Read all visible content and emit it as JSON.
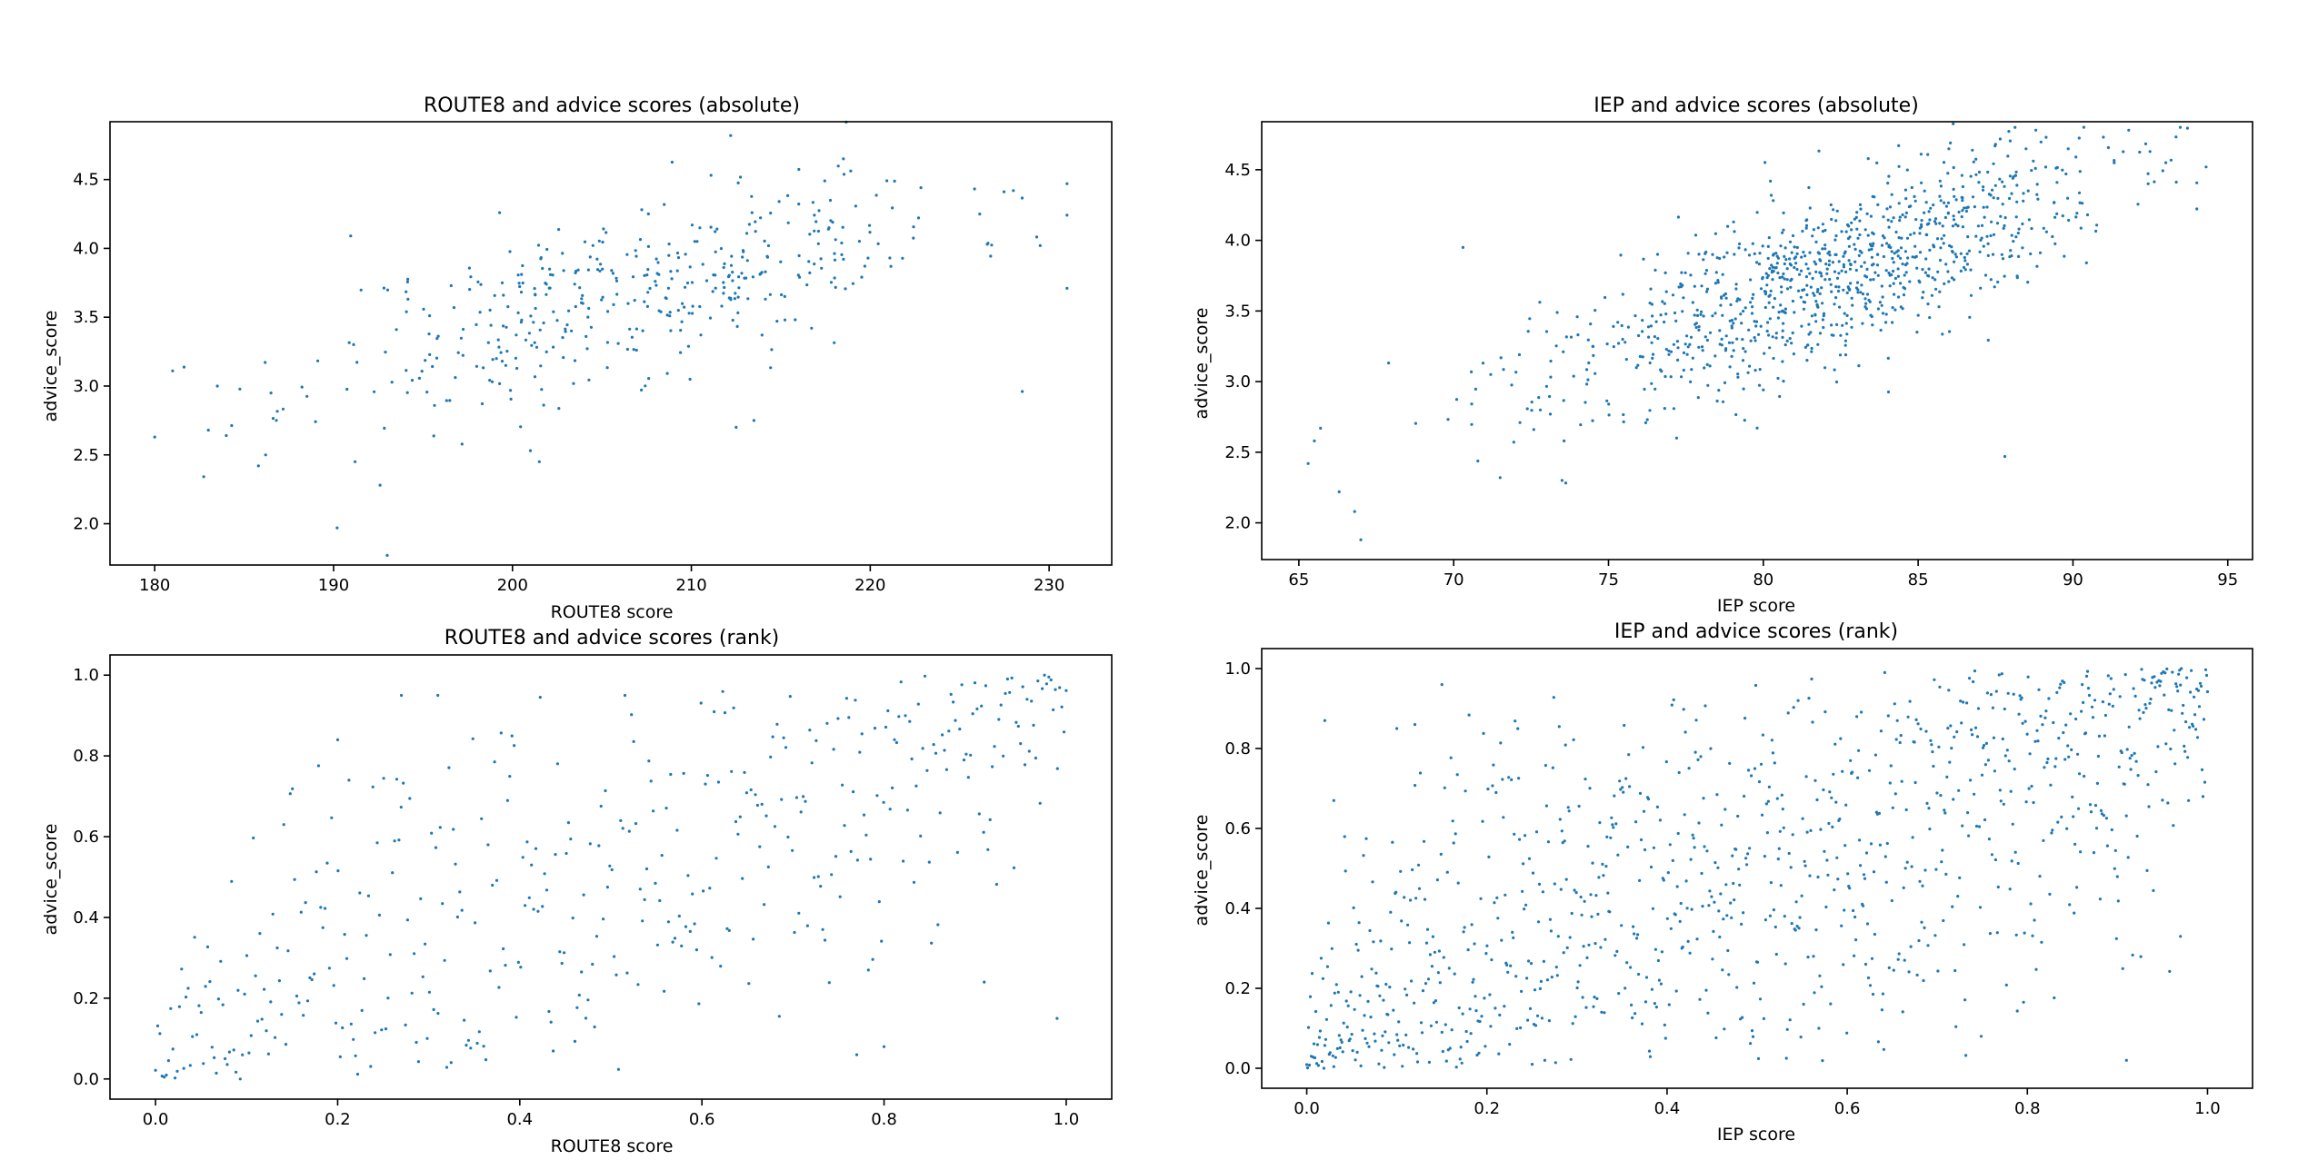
{
  "figure": {
    "point_color": "#1f77b4"
  },
  "chart_data": [
    {
      "type": "scatter",
      "title": "ROUTE8 and advice scores (absolute)",
      "xlabel": "ROUTE8 score",
      "ylabel": "advice_score",
      "xlim": [
        177.5,
        233.5
      ],
      "ylim": [
        1.7,
        4.92
      ],
      "xticks": [
        180,
        190,
        200,
        210,
        220,
        230
      ],
      "yticks": [
        2.0,
        2.5,
        3.0,
        3.5,
        4.0,
        4.5
      ],
      "tick_decimals": 1,
      "x_tick_decimals": 0,
      "trend": {
        "slope": 0.033,
        "intercept_x": 180,
        "intercept_y": 2.8,
        "noise": 0.32,
        "x_mean": 207,
        "x_sd": 9,
        "x_min": 180,
        "x_max": 231,
        "n": 420,
        "seed": 11
      },
      "points": [
        [
          180.0,
          2.63
        ],
        [
          181.0,
          3.11
        ],
        [
          183.0,
          2.68
        ],
        [
          183.5,
          3.0
        ],
        [
          184.0,
          2.64
        ],
        [
          185.8,
          2.42
        ],
        [
          186.2,
          2.5
        ],
        [
          186.5,
          2.95
        ],
        [
          190.2,
          1.97
        ],
        [
          193.0,
          1.77
        ],
        [
          192.6,
          2.28
        ],
        [
          191.2,
          2.45
        ],
        [
          231.0,
          4.47
        ],
        [
          231.0,
          3.71
        ],
        [
          228.5,
          2.96
        ],
        [
          212.2,
          4.82
        ],
        [
          218.5,
          4.65
        ],
        [
          228.0,
          4.42
        ],
        [
          213.5,
          2.75
        ],
        [
          212.5,
          2.7
        ],
        [
          201.5,
          2.45
        ],
        [
          229.5,
          4.02
        ]
      ]
    },
    {
      "type": "scatter",
      "title": "IEP and advice scores (absolute)",
      "xlabel": "IEP score",
      "ylabel": "advice_score",
      "xlim": [
        63.8,
        95.8
      ],
      "ylim": [
        1.74,
        4.84
      ],
      "xticks": [
        65,
        70,
        75,
        80,
        85,
        90,
        95
      ],
      "yticks": [
        2.0,
        2.5,
        3.0,
        3.5,
        4.0,
        4.5
      ],
      "tick_decimals": 1,
      "x_tick_decimals": 0,
      "trend": {
        "slope": 0.075,
        "intercept_x": 65,
        "intercept_y": 2.45,
        "noise": 0.3,
        "x_mean": 82,
        "x_sd": 4.5,
        "x_min": 66,
        "x_max": 94,
        "n": 1000,
        "seed": 23
      },
      "points": [
        [
          65.3,
          2.42
        ],
        [
          65.5,
          2.58
        ],
        [
          65.7,
          2.67
        ],
        [
          66.3,
          2.22
        ],
        [
          66.8,
          2.08
        ],
        [
          67.0,
          1.88
        ],
        [
          70.3,
          3.95
        ],
        [
          94.3,
          4.52
        ],
        [
          93.0,
          4.55
        ],
        [
          91.8,
          4.78
        ],
        [
          88.8,
          4.78
        ],
        [
          87.5,
          4.68
        ],
        [
          87.8,
          2.47
        ],
        [
          71.5,
          2.32
        ],
        [
          73.5,
          2.3
        ]
      ]
    },
    {
      "type": "scatter",
      "title": "ROUTE8 and advice scores (rank)",
      "xlabel": "ROUTE8 score",
      "ylabel": "advice_score",
      "xlim": [
        -0.05,
        1.05
      ],
      "ylim": [
        -0.05,
        1.05
      ],
      "xticks": [
        0.0,
        0.2,
        0.4,
        0.6,
        0.8,
        1.0
      ],
      "yticks": [
        0.0,
        0.2,
        0.4,
        0.6,
        0.8,
        1.0
      ],
      "tick_decimals": 1,
      "x_tick_decimals": 1,
      "trend": {
        "rank": true,
        "corr": 0.72,
        "n": 420,
        "seed": 37
      },
      "points": [
        [
          0.27,
          0.95
        ],
        [
          0.31,
          0.95
        ],
        [
          0.2,
          0.84
        ],
        [
          0.99,
          0.15
        ],
        [
          0.91,
          0.24
        ],
        [
          0.77,
          0.06
        ],
        [
          0.8,
          0.08
        ]
      ]
    },
    {
      "type": "scatter",
      "title": "IEP and advice scores (rank)",
      "xlabel": "IEP score",
      "ylabel": "advice_score",
      "xlim": [
        -0.05,
        1.05
      ],
      "ylim": [
        -0.05,
        1.05
      ],
      "xticks": [
        0.0,
        0.2,
        0.4,
        0.6,
        0.8,
        1.0
      ],
      "yticks": [
        0.0,
        0.2,
        0.4,
        0.6,
        0.8,
        1.0
      ],
      "tick_decimals": 1,
      "x_tick_decimals": 1,
      "trend": {
        "rank": true,
        "corr": 0.7,
        "n": 1000,
        "seed": 53
      },
      "points": [
        [
          0.02,
          0.87
        ],
        [
          0.03,
          0.67
        ],
        [
          0.15,
          0.96
        ],
        [
          0.1,
          0.85
        ],
        [
          0.12,
          0.86
        ],
        [
          0.91,
          0.02
        ],
        [
          0.97,
          0.33
        ]
      ]
    }
  ]
}
